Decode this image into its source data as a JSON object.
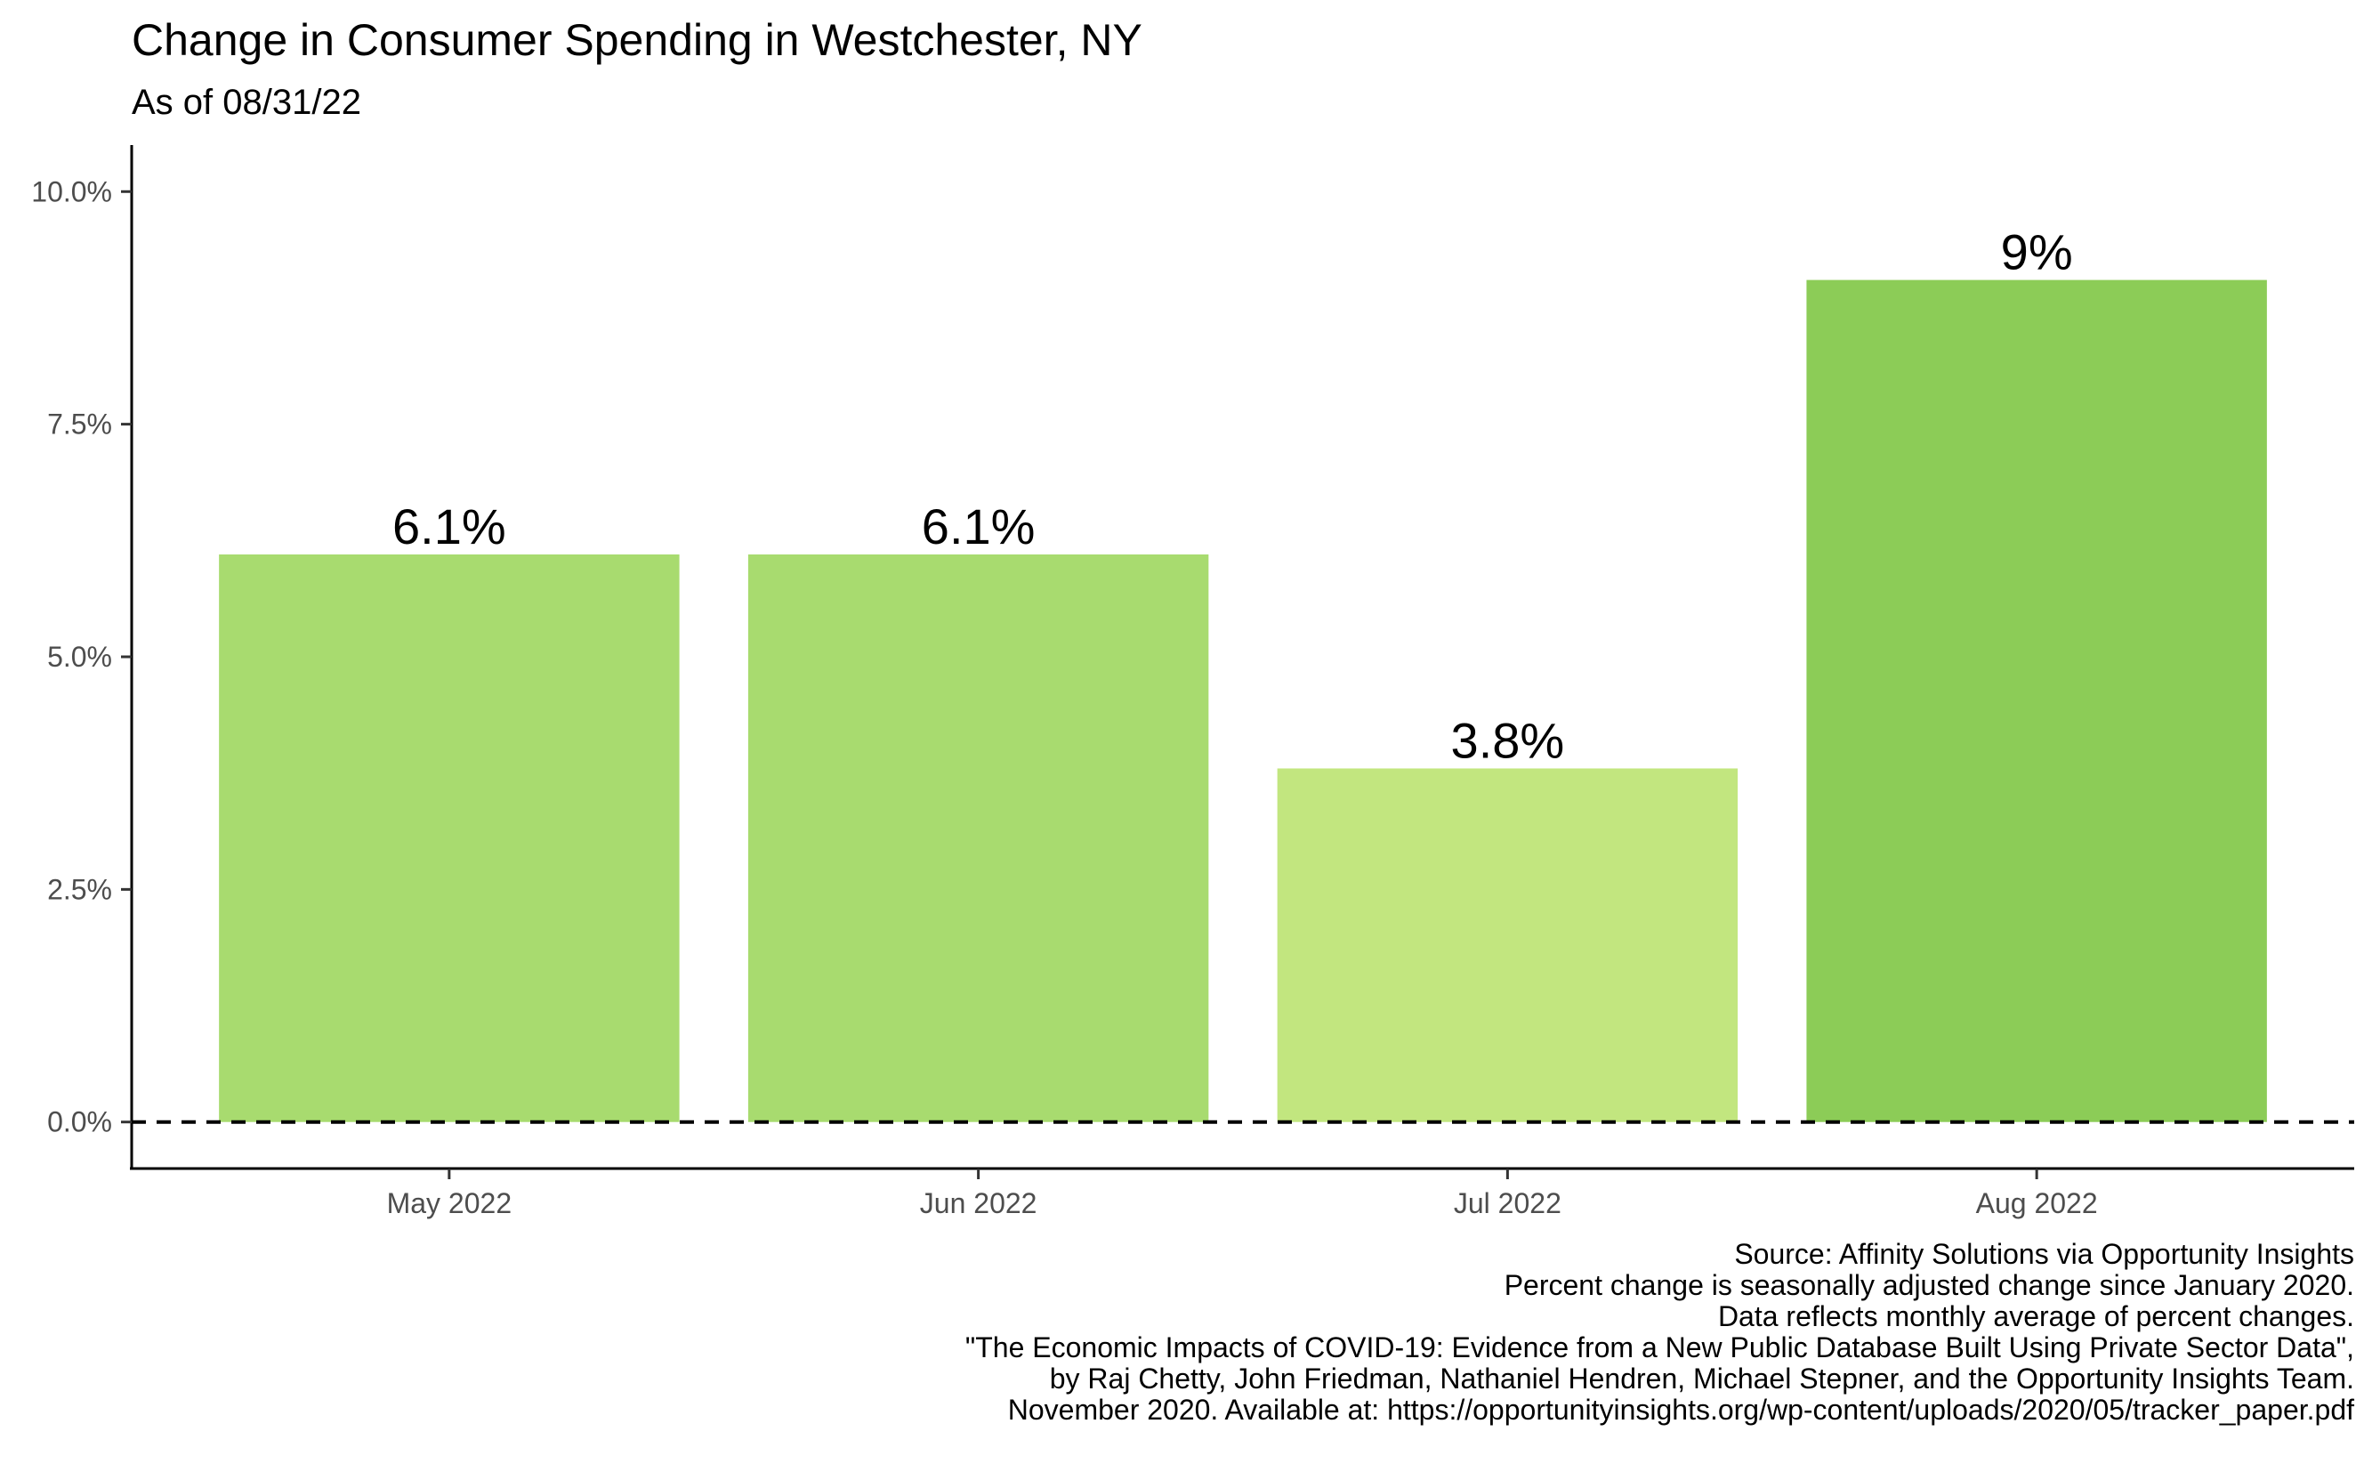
{
  "chart_data": {
    "type": "bar",
    "title": "Change in Consumer Spending in Westchester, NY",
    "subtitle": "As of 08/31/22",
    "xlabel": "",
    "ylabel": "",
    "categories": [
      "May 2022",
      "Jun 2022",
      "Jul 2022",
      "Aug 2022"
    ],
    "values": [
      6.1,
      6.1,
      3.8,
      9.05
    ],
    "data_labels": [
      "6.1%",
      "6.1%",
      "3.8%",
      "9%"
    ],
    "bar_colors": [
      "#a8db6f",
      "#a8db6f",
      "#c2e67f",
      "#8ccc57"
    ],
    "ylim": [
      -0.5,
      10.5
    ],
    "y_ticks": [
      0,
      2.5,
      5,
      7.5,
      10
    ],
    "y_tick_labels": [
      "0.0%",
      "2.5%",
      "5.0%",
      "7.5%",
      "10.0%"
    ],
    "reference_line": 0,
    "grid": false,
    "legend": "none",
    "caption": [
      "Source: Affinity Solutions via Opportunity Insights",
      "Percent change is seasonally adjusted change since January 2020.",
      "Data reflects monthly average of percent changes.",
      "\"The Economic Impacts of COVID-19: Evidence from a New Public Database Built Using Private Sector Data\",",
      "by Raj Chetty, John Friedman, Nathaniel Hendren, Michael Stepner, and the Opportunity Insights Team.",
      "November 2020. Available at: https://opportunityinsights.org/wp-content/uploads/2020/05/tracker_paper.pdf"
    ]
  }
}
